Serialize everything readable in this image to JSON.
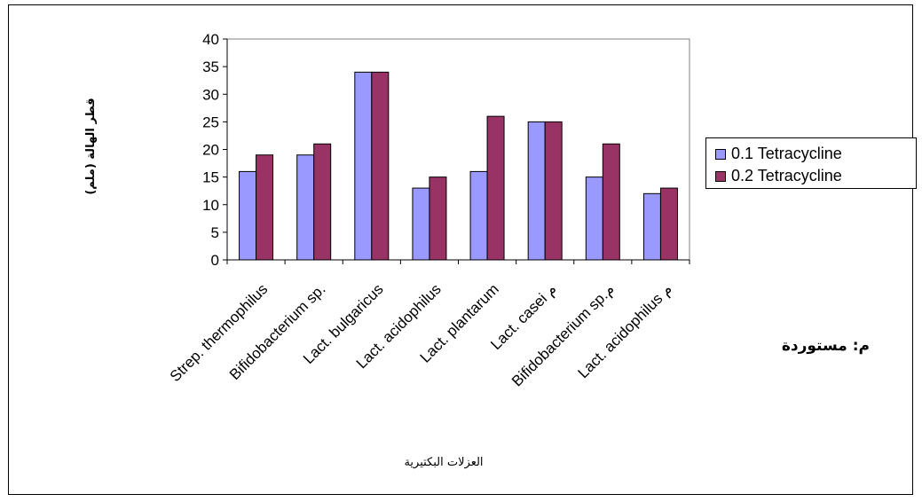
{
  "colors": {
    "series1": "#9999ff",
    "series2": "#993366",
    "axis": "#808080",
    "text": "#000000"
  },
  "note": "م: مستوردة",
  "chart_data": {
    "type": "bar",
    "title": "",
    "xlabel": "العزلات البكتيرية",
    "ylabel": "قطر الهالة (ملم)",
    "ylim": [
      0,
      40
    ],
    "yticks": [
      0,
      5,
      10,
      15,
      20,
      25,
      30,
      35,
      40
    ],
    "grid": false,
    "legend_position": "right",
    "categories": [
      "Strep. thermophilus",
      "Bifidobacterium sp.",
      "Lact. bulgaricus",
      "Lact. acidophilus",
      "Lact. plantarum",
      "Lact. casei م",
      "Bifidobacterium sp.م",
      "Lact. acidophilus م"
    ],
    "series": [
      {
        "name": "0.1 Tetracycline",
        "values": [
          16,
          19,
          34,
          13,
          16,
          25,
          15,
          12
        ]
      },
      {
        "name": "0.2 Tetracycline",
        "values": [
          19,
          21,
          34,
          15,
          26,
          25,
          21,
          13
        ]
      }
    ]
  }
}
